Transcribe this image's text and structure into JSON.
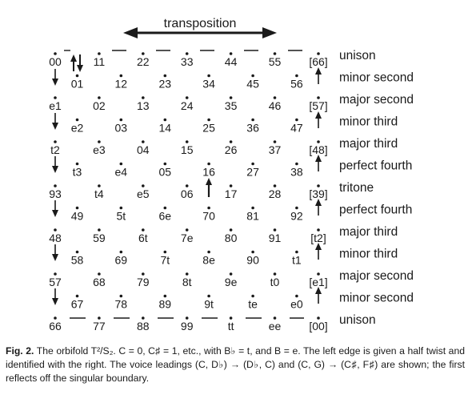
{
  "header": {
    "transposition_label": "transposition"
  },
  "grid": {
    "rows": [
      [
        "00",
        "11",
        "22",
        "33",
        "44",
        "55",
        "[66]"
      ],
      [
        "01",
        "12",
        "23",
        "34",
        "45",
        "56"
      ],
      [
        "e1",
        "02",
        "13",
        "24",
        "35",
        "46",
        "[57]"
      ],
      [
        "e2",
        "03",
        "14",
        "25",
        "36",
        "47"
      ],
      [
        "t2",
        "e3",
        "04",
        "15",
        "26",
        "37",
        "[48]"
      ],
      [
        "t3",
        "e4",
        "05",
        "16",
        "27",
        "38"
      ],
      [
        "93",
        "t4",
        "e5",
        "06",
        "17",
        "28",
        "[39]"
      ],
      [
        "49",
        "5t",
        "6e",
        "70",
        "81",
        "92"
      ],
      [
        "48",
        "59",
        "6t",
        "7e",
        "80",
        "91",
        "[t2]"
      ],
      [
        "58",
        "69",
        "7t",
        "8e",
        "90",
        "t1"
      ],
      [
        "57",
        "68",
        "79",
        "8t",
        "9e",
        "t0",
        "[e1]"
      ],
      [
        "67",
        "78",
        "89",
        "9t",
        "te",
        "e0"
      ],
      [
        "66",
        "77",
        "88",
        "99",
        "tt",
        "ee",
        "[00]"
      ]
    ]
  },
  "interval_labels": [
    "unison",
    "minor second",
    "major second",
    "minor third",
    "major third",
    "perfect fourth",
    "tritone",
    "perfect fourth",
    "major third",
    "minor third",
    "major second",
    "minor second",
    "unison"
  ],
  "caption": {
    "fig_label": "Fig. 2.",
    "part1": " The orbifold ",
    "math_orbifold": "T²/S₂",
    "part2": ". C = 0, C♯ = 1, etc., with B♭ = t, and B = e. The left edge is given a half twist and identified with the right. The voice leadings (C, D♭) → (D♭, C) and (C, G) → (C♯, F♯) are shown; the first reflects off the singular boundary."
  }
}
